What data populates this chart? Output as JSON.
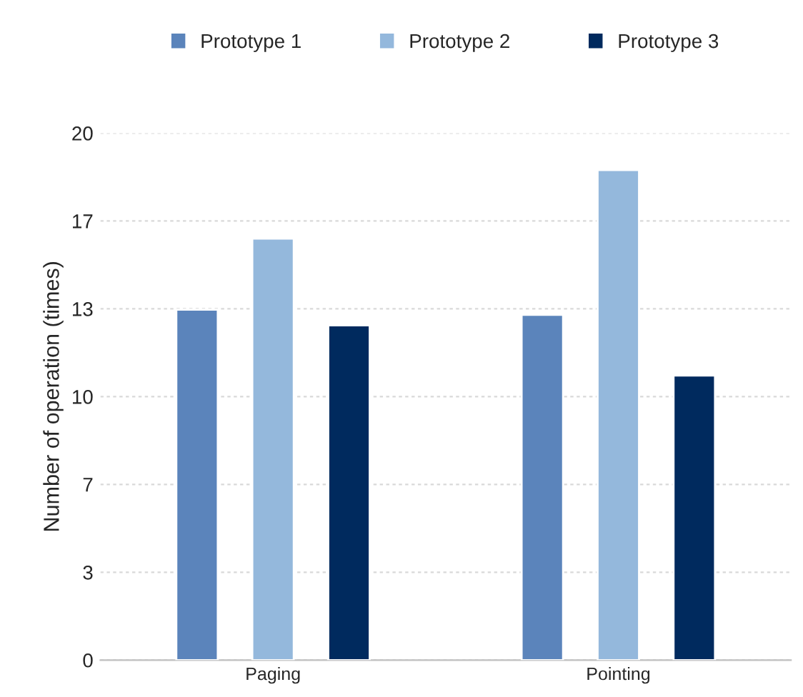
{
  "chart_data": {
    "type": "bar",
    "ylabel": "Number of operation (times)",
    "categories": [
      "Paging",
      "Pointing"
    ],
    "series": [
      {
        "name": "Prototype 1",
        "color": "#5b84bb",
        "values": [
          13.3,
          13.1
        ]
      },
      {
        "name": "Prototype 2",
        "color": "#94b8dc",
        "values": [
          16.0,
          18.6
        ]
      },
      {
        "name": "Prototype 3",
        "color": "#002a5e",
        "values": [
          12.7,
          10.8
        ]
      }
    ],
    "ylim": [
      0,
      20
    ],
    "yticks": [
      0,
      {
        "value": 3.333,
        "label": "3"
      },
      {
        "value": 6.667,
        "label": "7"
      },
      10,
      {
        "value": 13.333,
        "label": "13"
      },
      {
        "value": 16.667,
        "label": "17"
      },
      20
    ],
    "grid": "y",
    "legend": "top"
  }
}
